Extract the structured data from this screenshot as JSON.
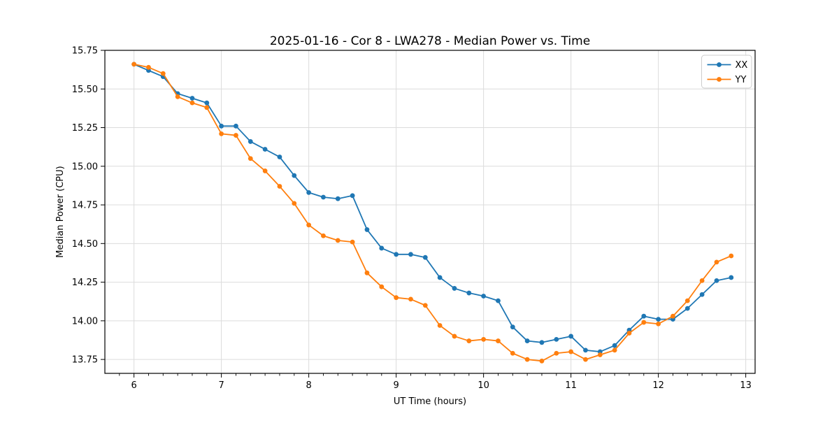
{
  "chart_data": {
    "type": "line",
    "title": "2025-01-16 - Cor 8 - LWA278 - Median Power vs. Time",
    "xlabel": "UT Time (hours)",
    "ylabel": "Median Power (CPU)",
    "xlim": [
      5.667,
      13.107
    ],
    "ylim": [
      13.66,
      15.75
    ],
    "xticks": [
      6,
      7,
      8,
      9,
      10,
      11,
      12,
      13
    ],
    "yticks": [
      13.75,
      14.0,
      14.25,
      14.5,
      14.75,
      15.0,
      15.25,
      15.5,
      15.75
    ],
    "x_minors_per_hour": 6,
    "grid": true,
    "grid_color": "#dcdcdc",
    "spine_color": "#000000",
    "legend_position": "upper right",
    "x": [
      6,
      6.1667,
      6.3333,
      6.5,
      6.6667,
      6.8333,
      7,
      7.1667,
      7.3333,
      7.5,
      7.6667,
      7.8333,
      8,
      8.1667,
      8.3333,
      8.5,
      8.6667,
      8.8333,
      9,
      9.1667,
      9.3333,
      9.5,
      9.6667,
      9.8333,
      10,
      10.1667,
      10.3333,
      10.5,
      10.6667,
      10.8333,
      11,
      11.1667,
      11.3333,
      11.5,
      11.6667,
      11.8333,
      12,
      12.1667,
      12.3333,
      12.5,
      12.6667,
      12.8333
    ],
    "series": [
      {
        "name": "XX",
        "color": "#1f77b4",
        "values": [
          15.66,
          15.62,
          15.58,
          15.47,
          15.44,
          15.41,
          15.26,
          15.26,
          15.16,
          15.11,
          15.06,
          14.94,
          14.83,
          14.8,
          14.79,
          14.81,
          14.59,
          14.47,
          14.43,
          14.43,
          14.41,
          14.28,
          14.21,
          14.18,
          14.16,
          14.13,
          13.96,
          13.87,
          13.86,
          13.88,
          13.9,
          13.81,
          13.8,
          13.84,
          13.94,
          14.03,
          14.01,
          14.01,
          14.08,
          14.17,
          14.26,
          14.28
        ]
      },
      {
        "name": "YY",
        "color": "#ff7f0e",
        "values": [
          15.66,
          15.64,
          15.6,
          15.45,
          15.41,
          15.38,
          15.21,
          15.2,
          15.05,
          14.97,
          14.87,
          14.76,
          14.62,
          14.55,
          14.52,
          14.51,
          14.31,
          14.22,
          14.15,
          14.14,
          14.1,
          13.97,
          13.9,
          13.87,
          13.88,
          13.87,
          13.79,
          13.75,
          13.74,
          13.79,
          13.8,
          13.75,
          13.78,
          13.81,
          13.92,
          13.99,
          13.98,
          14.03,
          14.13,
          14.26,
          14.38,
          14.42
        ]
      }
    ]
  }
}
